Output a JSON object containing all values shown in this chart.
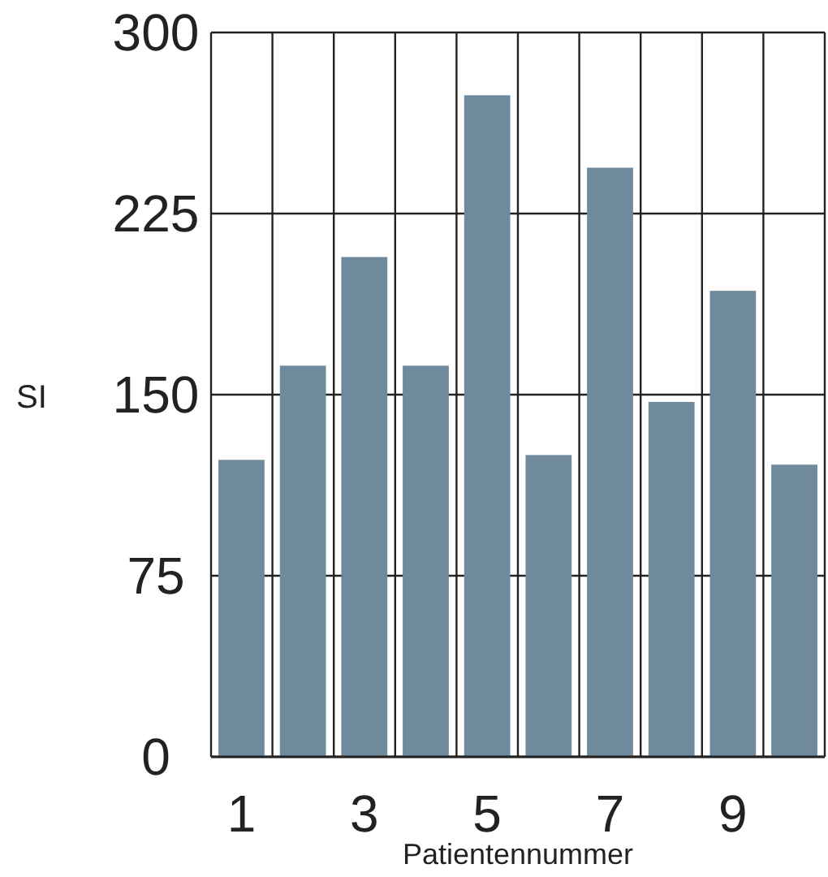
{
  "chart_data": {
    "type": "bar",
    "xlabel": "Patientennummer",
    "ylabel": "SI",
    "categories": [
      "1",
      null,
      "3",
      null,
      "5",
      null,
      "7",
      null,
      "9",
      null
    ],
    "values": [
      123,
      162,
      207,
      162,
      274,
      125,
      244,
      147,
      193,
      121
    ],
    "color": "#6e8a9c",
    "ylim": [
      0,
      300
    ],
    "yticks": [
      0,
      75,
      150,
      225,
      300
    ],
    "grid": true
  }
}
